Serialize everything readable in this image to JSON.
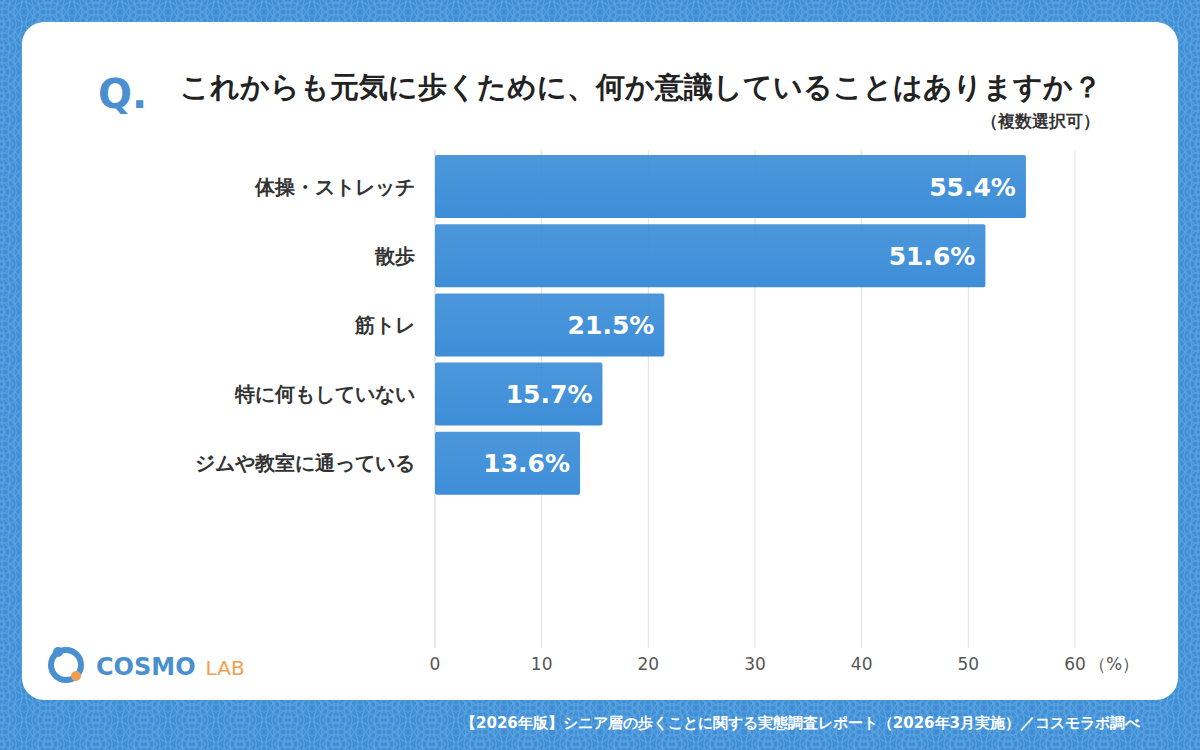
{
  "chart_data": {
    "type": "bar",
    "orientation": "horizontal",
    "title": "これからも元気に歩くために、何か意識していることはありますか？",
    "title_prefix": "Q.",
    "subtitle": "（複数選択可）",
    "categories": [
      "体操・ストレッチ",
      "散歩",
      "筋トレ",
      "特に何もしていない",
      "ジムや教室に通っている"
    ],
    "values": [
      55.4,
      51.6,
      21.5,
      15.7,
      13.6
    ],
    "value_labels": [
      "55.4%",
      "51.6%",
      "21.5%",
      "15.7%",
      "13.6%"
    ],
    "data_labels": true,
    "color": "#3d8ed8",
    "xlim": [
      0,
      60
    ],
    "xticks": [
      0,
      10,
      20,
      30,
      40,
      50,
      60
    ],
    "x_label": "（%）",
    "grid": true,
    "source": "【2026年版】シニア層の歩くことに関する実態調査レポート（2026年3月実施）／コスモラボ調べ",
    "logo": {
      "main": "COSMO",
      "sub": "LAB"
    }
  }
}
